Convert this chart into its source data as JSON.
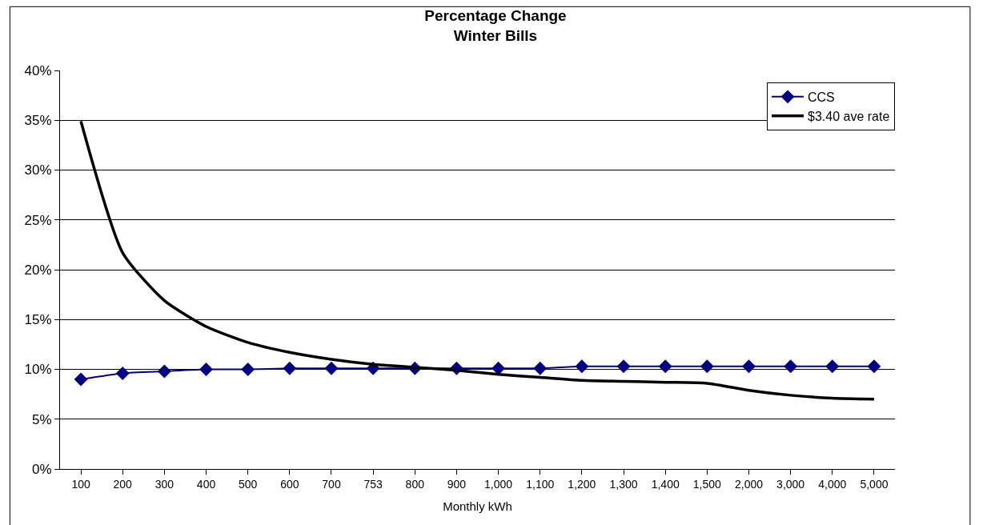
{
  "chart_data": {
    "type": "line",
    "title": "Percentage Change\nWinter Bills",
    "xlabel": "Monthly kWh",
    "categories": [
      "100",
      "200",
      "300",
      "400",
      "500",
      "600",
      "700",
      "753",
      "800",
      "900",
      "1,000",
      "1,100",
      "1,200",
      "1,300",
      "1,400",
      "1,500",
      "2,000",
      "3,000",
      "4,000",
      "5,000"
    ],
    "series": [
      {
        "name": "CCS",
        "color": "#000080",
        "marker": "diamond",
        "values": [
          9.0,
          9.6,
          9.8,
          10.0,
          10.0,
          10.1,
          10.1,
          10.1,
          10.1,
          10.1,
          10.1,
          10.1,
          10.3,
          10.3,
          10.3,
          10.3,
          10.3,
          10.3,
          10.3,
          10.3
        ]
      },
      {
        "name": "$3.40 ave rate",
        "color": "#000000",
        "marker": "none",
        "values": [
          34.9,
          21.7,
          16.9,
          14.3,
          12.7,
          11.7,
          11.0,
          10.5,
          10.2,
          9.9,
          9.5,
          9.2,
          8.9,
          8.8,
          8.7,
          8.6,
          7.9,
          7.4,
          7.1,
          7.0
        ]
      }
    ],
    "ylim": [
      0,
      40
    ],
    "yticks": [
      {
        "value": 0,
        "label": "0%"
      },
      {
        "value": 5,
        "label": "5%"
      },
      {
        "value": 10,
        "label": "10%"
      },
      {
        "value": 15,
        "label": "15%"
      },
      {
        "value": 20,
        "label": "20%"
      },
      {
        "value": 25,
        "label": "25%"
      },
      {
        "value": 30,
        "label": "30%"
      },
      {
        "value": 35,
        "label": "35%"
      },
      {
        "value": 40,
        "label": "40%"
      }
    ],
    "grid": "y",
    "legend": "top right"
  }
}
